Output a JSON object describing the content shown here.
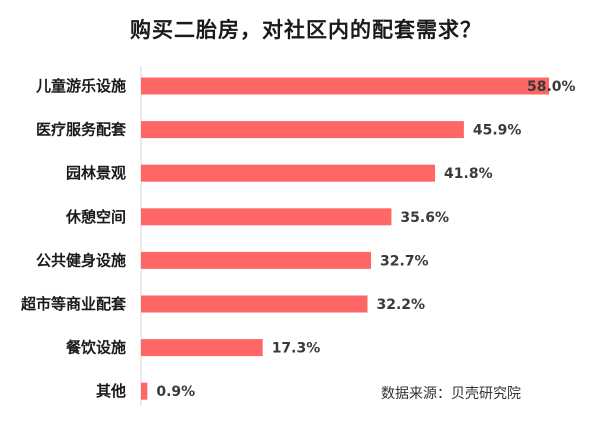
{
  "chart_data": {
    "type": "bar",
    "orientation": "horizontal",
    "title": "购买二胎房，对社区内的配套需求？",
    "categories": [
      "儿童游乐设施",
      "医疗服务配套",
      "园林景观",
      "休憩空间",
      "公共健身设施",
      "超市等商业配套",
      "餐饮设施",
      "其他"
    ],
    "values": [
      58.0,
      45.9,
      41.8,
      35.6,
      32.7,
      32.2,
      17.3,
      0.9
    ],
    "value_labels": [
      "58.0%",
      "45.9%",
      "41.8%",
      "35.6%",
      "32.7%",
      "32.2%",
      "17.3%",
      "0.9%"
    ],
    "unit": "%",
    "xlim": [
      0,
      58
    ],
    "bar_color": "#ff6666",
    "grid": false,
    "legend": "none"
  },
  "source_note": "数据来源：贝壳研究院"
}
